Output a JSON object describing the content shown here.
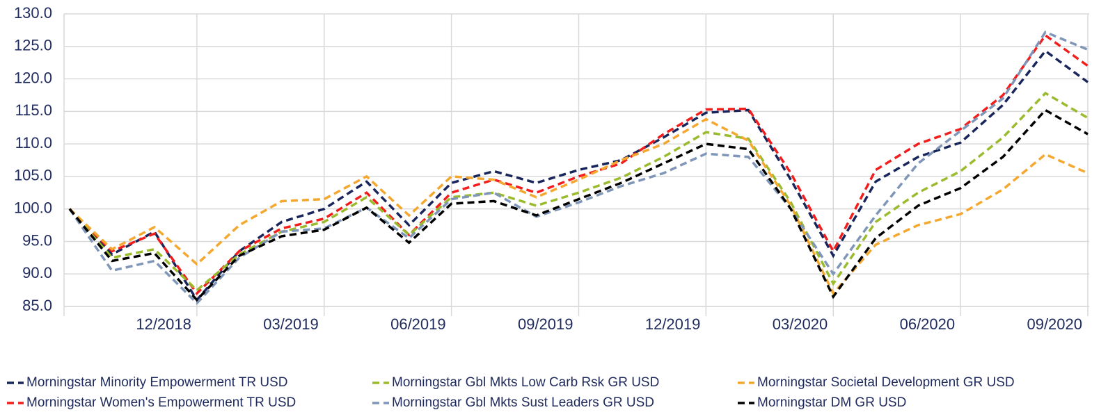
{
  "chart_data": {
    "type": "line",
    "categories": [
      null,
      null,
      null,
      "12/2018",
      null,
      null,
      "03/2019",
      null,
      null,
      "06/2019",
      null,
      null,
      "09/2019",
      null,
      null,
      "12/2019",
      null,
      null,
      "03/2020",
      null,
      null,
      "06/2020",
      null,
      null,
      "09/2020"
    ],
    "series": [
      {
        "name": "Morningstar Minority Empowerment TR USD",
        "color": "#17255a",
        "values": [
          100,
          93,
          96.5,
          86,
          93.5,
          98,
          100,
          104.2,
          97.5,
          104,
          105.8,
          104,
          106,
          107.5,
          111,
          114.8,
          115.2,
          104.5,
          92.8,
          104.2,
          108,
          110.2,
          116,
          124.3,
          119.5
        ]
      },
      {
        "name": "Morningstar Women's Empowerment TR USD",
        "color": "#f21e1e",
        "values": [
          100,
          93.5,
          96.2,
          87,
          93.5,
          97,
          98.5,
          102.5,
          96,
          102.5,
          104.5,
          102.5,
          105,
          107,
          111.5,
          115.3,
          115.4,
          105.5,
          93.5,
          106,
          110,
          112.3,
          117.5,
          126.7,
          122
        ]
      },
      {
        "name": "Morningstar Gbl Mkts Low Carb Rsk GR USD",
        "color": "#9bbb2e",
        "values": [
          100,
          92.5,
          93.8,
          87.5,
          93,
          96.5,
          98,
          101.8,
          96,
          101.8,
          102.5,
          100.5,
          102.5,
          104.8,
          108,
          111.8,
          110.8,
          101,
          88.5,
          98,
          102.5,
          105.8,
          111,
          117.8,
          114
        ]
      },
      {
        "name": "Morningstar Gbl Mkts Sust Leaders GR USD",
        "color": "#7f96b8",
        "values": [
          100,
          90.5,
          92,
          85.5,
          92.5,
          96.5,
          97,
          100.2,
          95.5,
          101.5,
          102.5,
          98.8,
          101,
          103.5,
          105.5,
          108.5,
          108,
          100,
          90,
          99,
          107,
          112,
          117,
          127.2,
          124.5
        ]
      },
      {
        "name": "Morningstar Societal Development GR USD",
        "color": "#f4a830",
        "values": [
          100,
          93.8,
          97.2,
          91.5,
          97.5,
          101.2,
          101.5,
          105,
          99,
          105,
          104.5,
          101.8,
          104.5,
          107.5,
          110,
          113.8,
          110.5,
          100.5,
          87,
          94.5,
          97.5,
          99.2,
          103,
          108.4,
          105.5
        ]
      },
      {
        "name": "Morningstar DM GR USD",
        "color": "#000000",
        "values": [
          100,
          92,
          93.2,
          86,
          92.8,
          95.8,
          96.8,
          100.2,
          94.8,
          100.8,
          101.2,
          99,
          101.5,
          104,
          107,
          110,
          109.2,
          100,
          86.5,
          95.5,
          100.5,
          103.2,
          108,
          115.2,
          111.5
        ]
      }
    ],
    "ylim": [
      85,
      130
    ],
    "yticks": [
      {
        "value": 85,
        "label": "85.0"
      },
      {
        "value": 90,
        "label": "90.0"
      },
      {
        "value": 95,
        "label": "95.0"
      },
      {
        "value": 100,
        "label": "100.0"
      },
      {
        "value": 105,
        "label": "105.0"
      },
      {
        "value": 110,
        "label": "110.0"
      },
      {
        "value": 115,
        "label": "115.0"
      },
      {
        "value": 120,
        "label": "120.0"
      },
      {
        "value": 125,
        "label": "125.0"
      },
      {
        "value": 130,
        "label": "130.0"
      }
    ],
    "grid": true,
    "legend": "bottom"
  }
}
